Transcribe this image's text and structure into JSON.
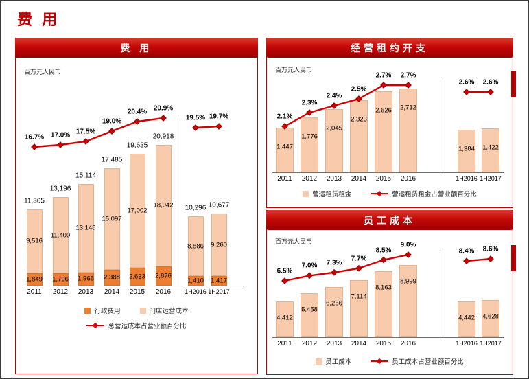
{
  "page": {
    "title": "费 用"
  },
  "colors": {
    "accent_red": "#C00000",
    "trend_line_red": "#D00000",
    "admin_orange": "#ED7D31",
    "bar_peach": "#F8CBAD"
  },
  "chart_data": [
    {
      "type": "bar",
      "stacked": true,
      "title": "费 用",
      "unit_label": "百万元人民币",
      "legend_position": "bottom",
      "group_break": 6,
      "categories": [
        "2011",
        "2012",
        "2013",
        "2014",
        "2015",
        "2016",
        "1H2016",
        "1H2017"
      ],
      "series": [
        {
          "name": "行政费用",
          "color": "#ED7D31",
          "values": [
            1849,
            1796,
            1966,
            2388,
            2633,
            2876,
            1410,
            1417
          ],
          "labels": [
            "1,849",
            "1,796",
            "1,966",
            "2,388",
            "2,633",
            "2,876",
            "1,410",
            "1,417"
          ]
        },
        {
          "name": "门店运营成本",
          "color": "#F8CBAD",
          "values": [
            9516,
            11400,
            13148,
            15097,
            17002,
            18042,
            8886,
            9260
          ],
          "labels": [
            "9,516",
            "11,400",
            "13,148",
            "15,097",
            "17,002",
            "18,042",
            "8,886",
            "9,260"
          ]
        }
      ],
      "totals": {
        "values": [
          11365,
          13196,
          15114,
          17485,
          19635,
          20918,
          10296,
          10677
        ],
        "labels": [
          "11,365",
          "13,196",
          "15,114",
          "17,485",
          "19,635",
          "20,918",
          "10,296",
          "10,677"
        ]
      },
      "line": {
        "name": "总营运成本占营业额百分比",
        "color": "#D00000",
        "values": [
          16.7,
          17.0,
          17.5,
          19.0,
          20.4,
          20.9,
          19.5,
          19.7
        ],
        "labels": [
          "16.7%",
          "17.0%",
          "17.5%",
          "19.0%",
          "20.4%",
          "20.9%",
          "19.5%",
          "19.7%"
        ]
      }
    },
    {
      "type": "bar",
      "stacked": false,
      "title": "经营租约开支",
      "unit_label": "百万元人民币",
      "legend_position": "bottom",
      "group_break": 6,
      "categories": [
        "2011",
        "2012",
        "2013",
        "2014",
        "2015",
        "2016",
        "1H2016",
        "1H2017"
      ],
      "series": [
        {
          "name": "营运租赁租金",
          "color": "#F8CBAD",
          "values": [
            1447,
            1776,
            2045,
            2323,
            2626,
            2712,
            1384,
            1422
          ],
          "labels": [
            "1,447",
            "1,776",
            "2,045",
            "2,323",
            "2,626",
            "2,712",
            "1,384",
            "1,422"
          ]
        }
      ],
      "line": {
        "name": "营运租赁租金占营业额百分比",
        "color": "#D00000",
        "values": [
          2.1,
          2.3,
          2.4,
          2.5,
          2.7,
          2.7,
          2.6,
          2.6
        ],
        "labels": [
          "2.1%",
          "2.3%",
          "2.4%",
          "2.5%",
          "2.7%",
          "2.7%",
          "2.6%",
          "2.6%"
        ]
      }
    },
    {
      "type": "bar",
      "stacked": false,
      "title": "员工成本",
      "unit_label": "百万元人民币",
      "legend_position": "bottom",
      "group_break": 6,
      "categories": [
        "2011",
        "2012",
        "2013",
        "2014",
        "2015",
        "2016",
        "1H2016",
        "1H2017"
      ],
      "series": [
        {
          "name": "员工成本",
          "color": "#F8CBAD",
          "values": [
            4412,
            5458,
            6256,
            7114,
            8163,
            8999,
            4442,
            4628
          ],
          "labels": [
            "4,412",
            "5,458",
            "6,256",
            "7,114",
            "8,163",
            "8,999",
            "4,442",
            "4,628"
          ]
        }
      ],
      "line": {
        "name": "员工成本占营业额百分比",
        "color": "#D00000",
        "values": [
          6.5,
          7.0,
          7.3,
          7.7,
          8.5,
          9.0,
          8.4,
          8.6
        ],
        "labels": [
          "6.5%",
          "7.0%",
          "7.3%",
          "7.7%",
          "8.5%",
          "9.0%",
          "8.4%",
          "8.6%"
        ]
      }
    }
  ]
}
